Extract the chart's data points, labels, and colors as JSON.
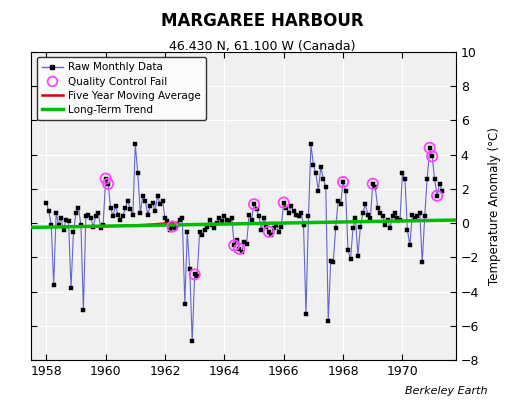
{
  "title": "MARGAREE HARBOUR",
  "subtitle": "46.430 N, 61.100 W (Canada)",
  "ylabel": "Temperature Anomaly (°C)",
  "credit": "Berkeley Earth",
  "xlim": [
    1957.5,
    1971.8
  ],
  "ylim": [
    -8,
    10
  ],
  "yticks": [
    -8,
    -6,
    -4,
    -2,
    0,
    2,
    4,
    6,
    8,
    10
  ],
  "xticks": [
    1958,
    1960,
    1962,
    1964,
    1966,
    1968,
    1970
  ],
  "plot_bg": "#f0f0f0",
  "fig_bg": "#ffffff",
  "line_color": "#6666cc",
  "marker_color": "#000000",
  "trend_color": "#00bb00",
  "ma_color": "#dd0000",
  "qc_color": "#ff44ff",
  "raw_data": [
    [
      1958.0,
      1.2
    ],
    [
      1958.083,
      0.7
    ],
    [
      1958.167,
      -0.1
    ],
    [
      1958.25,
      -3.6
    ],
    [
      1958.333,
      0.6
    ],
    [
      1958.417,
      -0.1
    ],
    [
      1958.5,
      0.3
    ],
    [
      1958.583,
      -0.4
    ],
    [
      1958.667,
      0.2
    ],
    [
      1958.75,
      0.1
    ],
    [
      1958.833,
      -3.8
    ],
    [
      1958.917,
      -0.5
    ],
    [
      1959.0,
      0.6
    ],
    [
      1959.083,
      0.9
    ],
    [
      1959.167,
      -0.1
    ],
    [
      1959.25,
      -5.1
    ],
    [
      1959.333,
      0.4
    ],
    [
      1959.417,
      0.5
    ],
    [
      1959.5,
      0.3
    ],
    [
      1959.583,
      -0.2
    ],
    [
      1959.667,
      0.4
    ],
    [
      1959.75,
      0.6
    ],
    [
      1959.833,
      -0.3
    ],
    [
      1959.917,
      -0.1
    ],
    [
      1960.0,
      2.6
    ],
    [
      1960.083,
      2.3
    ],
    [
      1960.167,
      0.9
    ],
    [
      1960.25,
      0.4
    ],
    [
      1960.333,
      1.0
    ],
    [
      1960.417,
      0.5
    ],
    [
      1960.5,
      0.2
    ],
    [
      1960.583,
      0.4
    ],
    [
      1960.667,
      0.9
    ],
    [
      1960.75,
      1.3
    ],
    [
      1960.833,
      0.8
    ],
    [
      1960.917,
      0.5
    ],
    [
      1961.0,
      4.6
    ],
    [
      1961.083,
      2.9
    ],
    [
      1961.167,
      0.6
    ],
    [
      1961.25,
      1.6
    ],
    [
      1961.333,
      1.3
    ],
    [
      1961.417,
      0.5
    ],
    [
      1961.5,
      1.0
    ],
    [
      1961.583,
      1.2
    ],
    [
      1961.667,
      0.7
    ],
    [
      1961.75,
      1.6
    ],
    [
      1961.833,
      1.1
    ],
    [
      1961.917,
      1.3
    ],
    [
      1962.0,
      0.3
    ],
    [
      1962.083,
      0.1
    ],
    [
      1962.167,
      -0.4
    ],
    [
      1962.25,
      -0.2
    ],
    [
      1962.333,
      -0.3
    ],
    [
      1962.417,
      -0.1
    ],
    [
      1962.5,
      0.2
    ],
    [
      1962.583,
      0.3
    ],
    [
      1962.667,
      -4.7
    ],
    [
      1962.75,
      -0.5
    ],
    [
      1962.833,
      -2.7
    ],
    [
      1962.917,
      -6.9
    ],
    [
      1963.0,
      -3.0
    ],
    [
      1963.083,
      -3.1
    ],
    [
      1963.167,
      -0.5
    ],
    [
      1963.25,
      -0.7
    ],
    [
      1963.333,
      -0.4
    ],
    [
      1963.417,
      -0.2
    ],
    [
      1963.5,
      0.2
    ],
    [
      1963.583,
      -0.1
    ],
    [
      1963.667,
      -0.3
    ],
    [
      1963.75,
      -0.0
    ],
    [
      1963.833,
      0.3
    ],
    [
      1963.917,
      0.1
    ],
    [
      1964.0,
      0.4
    ],
    [
      1964.083,
      0.2
    ],
    [
      1964.167,
      0.1
    ],
    [
      1964.25,
      0.3
    ],
    [
      1964.333,
      -1.3
    ],
    [
      1964.417,
      -1.0
    ],
    [
      1964.5,
      -1.5
    ],
    [
      1964.583,
      -1.7
    ],
    [
      1964.667,
      -1.1
    ],
    [
      1964.75,
      -1.2
    ],
    [
      1964.833,
      0.5
    ],
    [
      1964.917,
      0.2
    ],
    [
      1965.0,
      1.1
    ],
    [
      1965.083,
      0.8
    ],
    [
      1965.167,
      0.4
    ],
    [
      1965.25,
      -0.4
    ],
    [
      1965.333,
      0.3
    ],
    [
      1965.417,
      -0.2
    ],
    [
      1965.5,
      -0.5
    ],
    [
      1965.583,
      -0.7
    ],
    [
      1965.667,
      -0.3
    ],
    [
      1965.75,
      -0.1
    ],
    [
      1965.833,
      -0.5
    ],
    [
      1965.917,
      -0.2
    ],
    [
      1966.0,
      1.2
    ],
    [
      1966.083,
      0.9
    ],
    [
      1966.167,
      0.6
    ],
    [
      1966.25,
      1.0
    ],
    [
      1966.333,
      0.7
    ],
    [
      1966.417,
      0.5
    ],
    [
      1966.5,
      0.4
    ],
    [
      1966.583,
      0.6
    ],
    [
      1966.667,
      -0.1
    ],
    [
      1966.75,
      -5.3
    ],
    [
      1966.833,
      0.4
    ],
    [
      1966.917,
      4.6
    ],
    [
      1967.0,
      3.4
    ],
    [
      1967.083,
      2.9
    ],
    [
      1967.167,
      1.9
    ],
    [
      1967.25,
      3.3
    ],
    [
      1967.333,
      2.6
    ],
    [
      1967.417,
      2.1
    ],
    [
      1967.5,
      -5.7
    ],
    [
      1967.583,
      -2.2
    ],
    [
      1967.667,
      -2.3
    ],
    [
      1967.75,
      -0.3
    ],
    [
      1967.833,
      1.3
    ],
    [
      1967.917,
      1.1
    ],
    [
      1968.0,
      2.4
    ],
    [
      1968.083,
      1.9
    ],
    [
      1968.167,
      -1.6
    ],
    [
      1968.25,
      -2.1
    ],
    [
      1968.333,
      -0.3
    ],
    [
      1968.417,
      0.3
    ],
    [
      1968.5,
      -1.9
    ],
    [
      1968.583,
      -0.2
    ],
    [
      1968.667,
      0.6
    ],
    [
      1968.75,
      1.1
    ],
    [
      1968.833,
      0.5
    ],
    [
      1968.917,
      0.3
    ],
    [
      1969.0,
      2.3
    ],
    [
      1969.083,
      2.1
    ],
    [
      1969.167,
      0.9
    ],
    [
      1969.25,
      0.6
    ],
    [
      1969.333,
      0.4
    ],
    [
      1969.417,
      -0.1
    ],
    [
      1969.5,
      0.2
    ],
    [
      1969.583,
      -0.3
    ],
    [
      1969.667,
      0.4
    ],
    [
      1969.75,
      0.6
    ],
    [
      1969.833,
      0.3
    ],
    [
      1969.917,
      0.2
    ],
    [
      1970.0,
      2.9
    ],
    [
      1970.083,
      2.6
    ],
    [
      1970.167,
      -0.4
    ],
    [
      1970.25,
      -1.3
    ],
    [
      1970.333,
      0.5
    ],
    [
      1970.417,
      0.3
    ],
    [
      1970.5,
      0.4
    ],
    [
      1970.583,
      0.6
    ],
    [
      1970.667,
      -2.3
    ],
    [
      1970.75,
      0.4
    ],
    [
      1970.833,
      2.6
    ],
    [
      1970.917,
      4.4
    ],
    [
      1971.0,
      3.9
    ],
    [
      1971.083,
      2.6
    ],
    [
      1971.167,
      1.6
    ],
    [
      1971.25,
      2.3
    ],
    [
      1971.333,
      1.9
    ]
  ],
  "qc_fail_points": [
    [
      1960.0,
      2.6
    ],
    [
      1960.083,
      2.3
    ],
    [
      1962.25,
      -0.2
    ],
    [
      1963.0,
      -3.0
    ],
    [
      1964.333,
      -1.3
    ],
    [
      1964.5,
      -1.5
    ],
    [
      1965.0,
      1.1
    ],
    [
      1965.5,
      -0.5
    ],
    [
      1966.0,
      1.2
    ],
    [
      1968.0,
      2.4
    ],
    [
      1969.0,
      2.3
    ],
    [
      1970.917,
      4.4
    ],
    [
      1971.0,
      3.9
    ],
    [
      1971.167,
      1.6
    ]
  ],
  "moving_avg": [
    [
      1961.0,
      -0.15
    ],
    [
      1961.2,
      -0.12
    ],
    [
      1961.4,
      -0.1
    ],
    [
      1961.6,
      -0.08
    ],
    [
      1961.8,
      -0.05
    ],
    [
      1962.0,
      -0.02
    ],
    [
      1962.2,
      0.0
    ],
    [
      1962.4,
      0.02
    ]
  ],
  "trend_x": [
    1957.5,
    1971.8
  ],
  "trend_y": [
    -0.25,
    0.18
  ]
}
